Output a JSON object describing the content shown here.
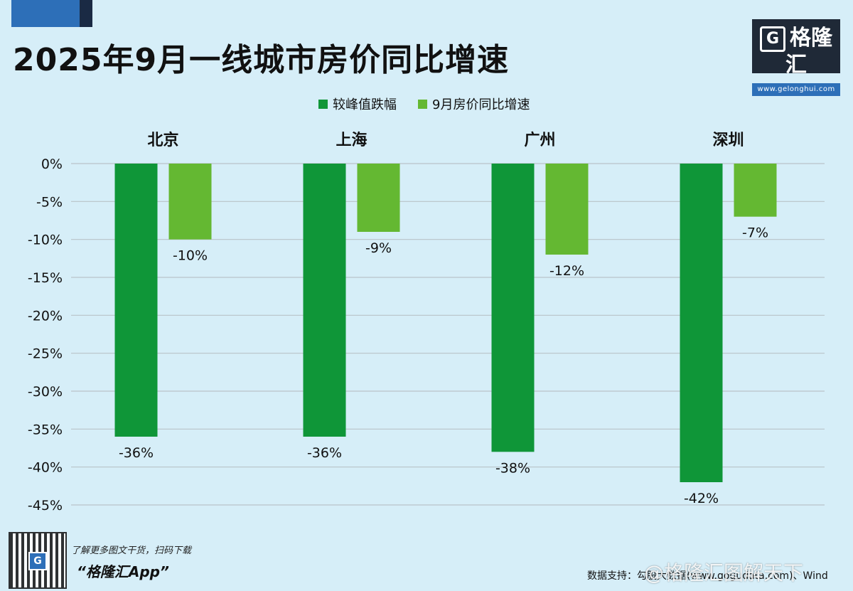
{
  "page": {
    "title": "2025年9月一线城市房价同比增速",
    "logo_text": "格隆汇",
    "logo_url": "www.gelonghui.com",
    "promo_line": "了解更多图文干货，扫码下载",
    "promo_app": "“格隆汇App”",
    "source": "数据支持：勾股大数据(www.gogudata.com)、Wind",
    "weibo_watermark": "@格隆汇图解天下"
  },
  "chart_data": {
    "type": "bar",
    "title": "2025年9月一线城市房价同比增速",
    "categories": [
      "北京",
      "上海",
      "广州",
      "深圳"
    ],
    "series": [
      {
        "name": "较峰值跌幅",
        "color": "#0f9638",
        "values": [
          -36,
          -36,
          -38,
          -42
        ],
        "labels": [
          "-36%",
          "-36%",
          "-38%",
          "-42%"
        ]
      },
      {
        "name": "9月房价同比增速",
        "color": "#64b832",
        "values": [
          -10,
          -9,
          -12,
          -7
        ],
        "labels": [
          "-10%",
          "-9%",
          "-12%",
          "-7%"
        ]
      }
    ],
    "ylim": [
      -45,
      0
    ],
    "yticks": [
      0,
      -5,
      -10,
      -15,
      -20,
      -25,
      -30,
      -35,
      -40,
      -45
    ],
    "ytick_labels": [
      "0%",
      "-5%",
      "-10%",
      "-15%",
      "-20%",
      "-25%",
      "-30%",
      "-35%",
      "-40%",
      "-45%"
    ],
    "grid": true,
    "legend": "top-center",
    "category_labels_position": "top"
  }
}
